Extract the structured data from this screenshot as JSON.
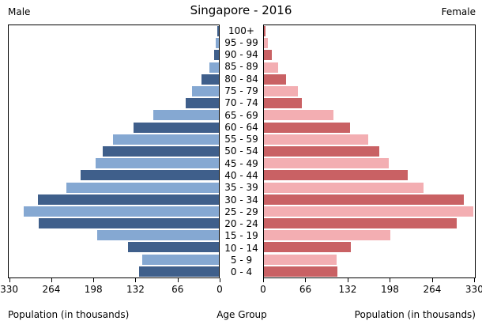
{
  "header": {
    "left": "Male",
    "title": "Singapore - 2016",
    "right": "Female"
  },
  "footer": {
    "left_axis_label": "Population (in thousands)",
    "center_axis_label": "Age Group",
    "right_axis_label": "Population (in thousands)"
  },
  "chart_data": {
    "type": "bar",
    "subtype": "population-pyramid",
    "title": "Singapore - 2016",
    "categories_top_to_bottom": [
      "100+",
      "95 - 99",
      "90 - 94",
      "85 - 89",
      "80 - 84",
      "75 - 79",
      "70 - 74",
      "65 - 69",
      "60 - 64",
      "55 - 59",
      "50 - 54",
      "45 - 49",
      "40 - 44",
      "35 - 39",
      "30 - 34",
      "25 - 29",
      "20 - 24",
      "15 - 19",
      "10 - 14",
      "5 - 9",
      "0 - 4"
    ],
    "series": [
      {
        "name": "Male",
        "side": "left",
        "values_top_to_bottom": [
          2,
          5,
          8,
          15,
          28,
          43,
          53,
          103,
          135,
          167,
          183,
          195,
          218,
          241,
          286,
          308,
          285,
          192,
          143,
          121,
          126
        ]
      },
      {
        "name": "Female",
        "side": "right",
        "values_top_to_bottom": [
          3,
          6,
          12,
          23,
          35,
          54,
          60,
          109,
          135,
          164,
          181,
          196,
          226,
          251,
          315,
          329,
          303,
          199,
          137,
          115,
          116
        ]
      }
    ],
    "axis": {
      "unit": "thousands",
      "max": 332,
      "ticks": [
        0,
        66,
        132,
        198,
        264,
        330
      ],
      "male_axis_direction": "descending-left",
      "female_axis_direction": "ascending-right"
    },
    "colors": {
      "male_dark": "#3f5f8b",
      "male_light": "#85a8d2",
      "female_dark": "#c96164",
      "female_light": "#f3aeb2"
    },
    "grid": false,
    "legend_position": "none"
  }
}
